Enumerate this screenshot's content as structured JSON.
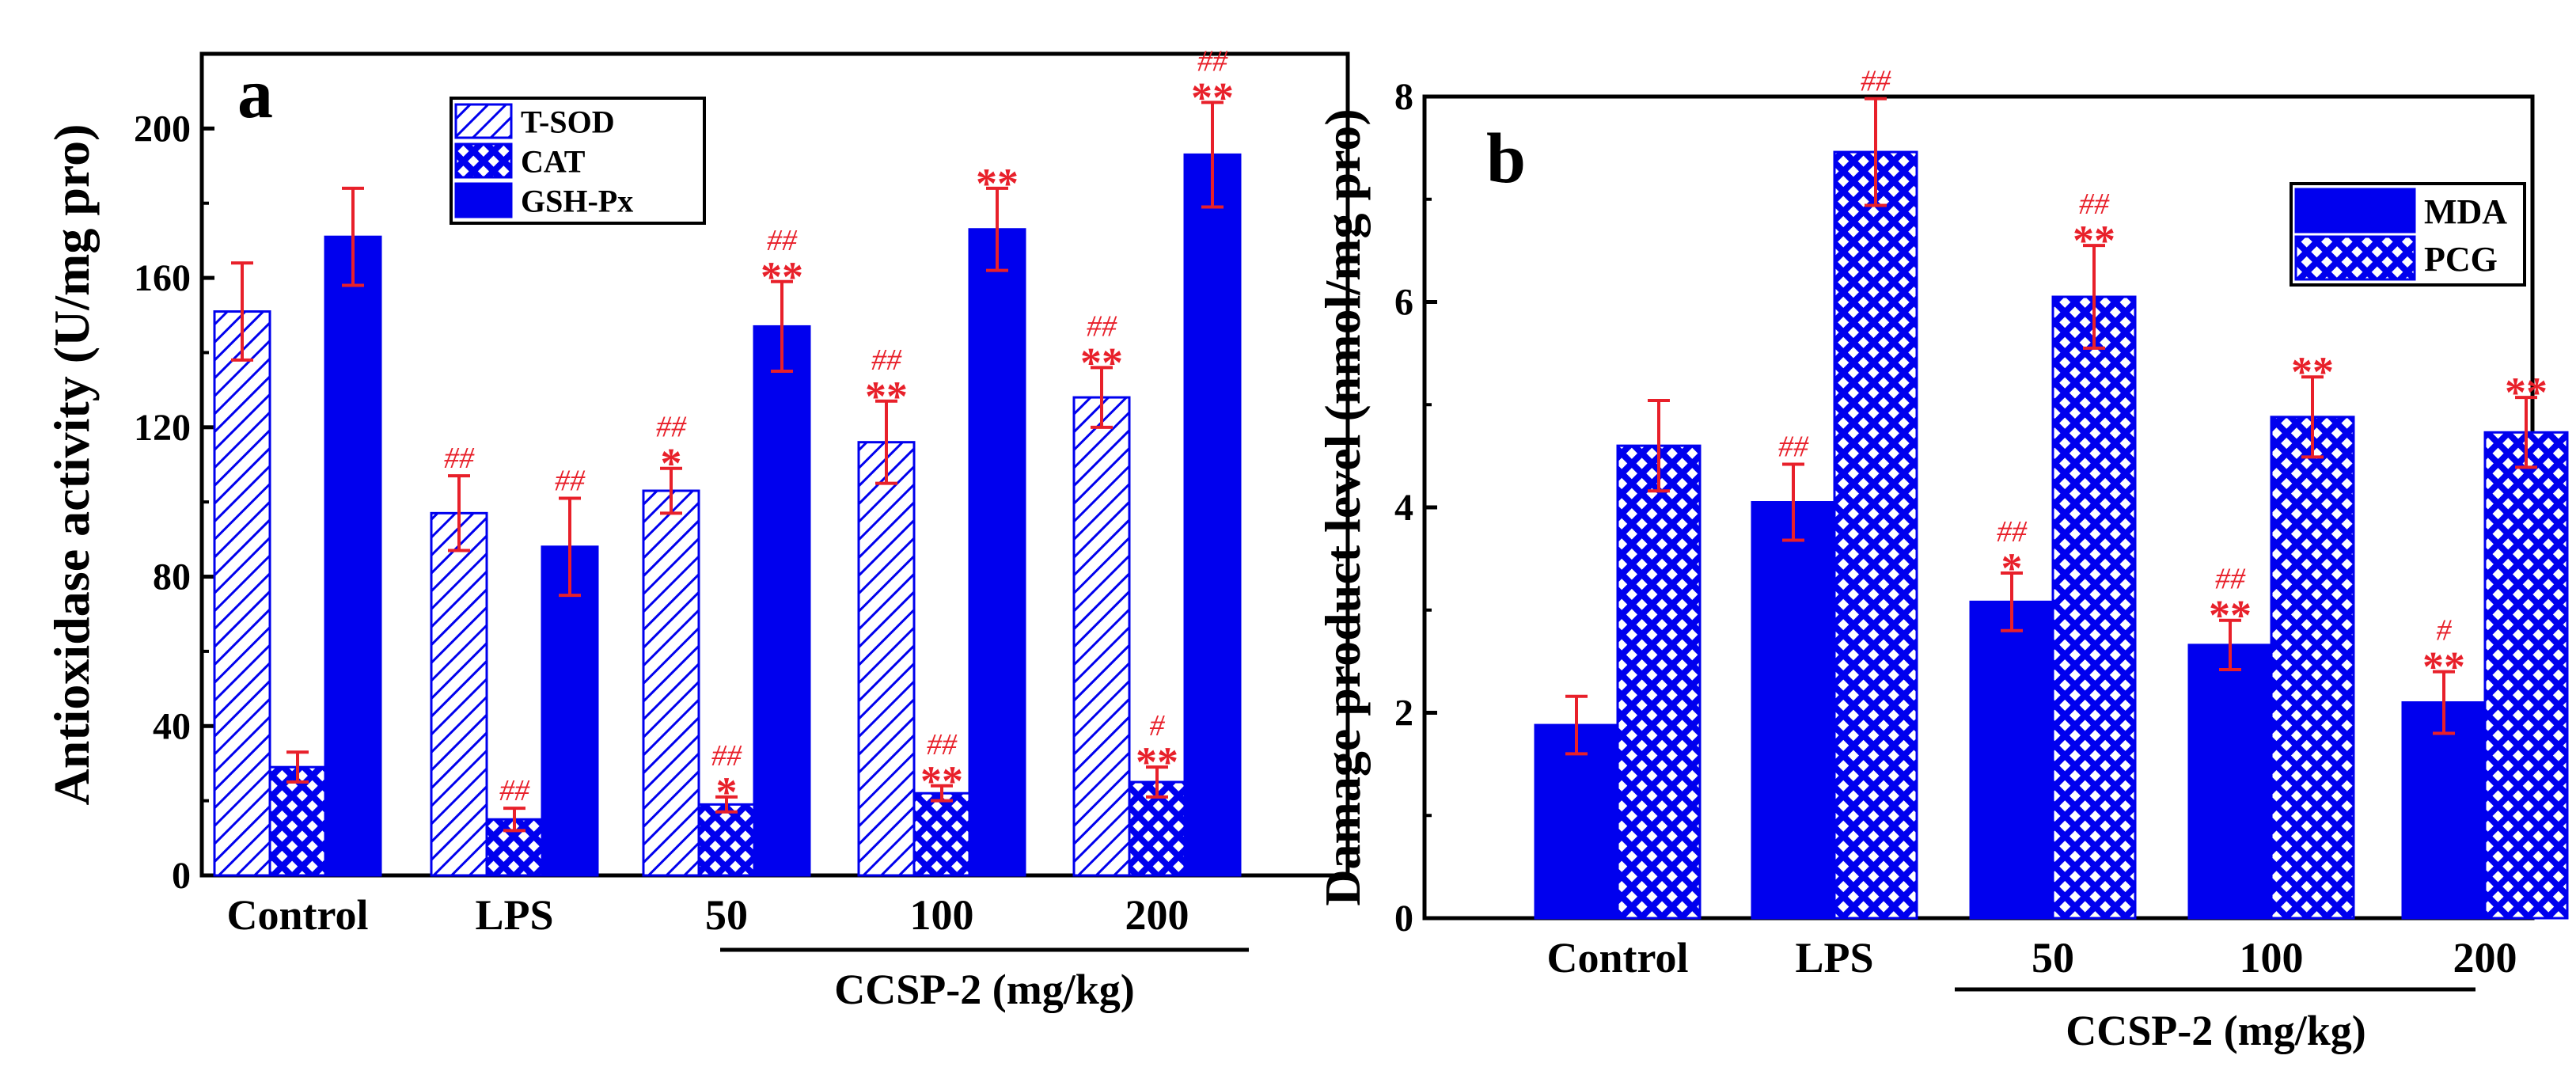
{
  "chart_data": [
    {
      "panel_label": "a",
      "type": "bar",
      "ylabel": "Antioxidase activity (U/mg pro)",
      "xlabel": "",
      "categories": [
        "Control",
        "LPS",
        "50",
        "100",
        "200"
      ],
      "group_label": "CCSP-2 (mg/kg)",
      "ylim": [
        0,
        220
      ],
      "yticks": [
        0,
        40,
        80,
        120,
        160,
        200
      ],
      "series": [
        {
          "name": "T-SOD",
          "pattern": "diagonal-hatch",
          "values": [
            151,
            97,
            103,
            116,
            128
          ],
          "errors": [
            13,
            10,
            6,
            11,
            8
          ],
          "marks": [
            [
              "",
              ""
            ],
            [
              "",
              "##"
            ],
            [
              "*",
              "##"
            ],
            [
              "**",
              "##"
            ],
            [
              "**",
              "##"
            ]
          ]
        },
        {
          "name": "CAT",
          "pattern": "cross-hatch",
          "values": [
            29,
            15,
            19,
            22,
            25
          ],
          "errors": [
            4,
            3,
            2,
            2,
            4
          ],
          "marks": [
            [
              "",
              ""
            ],
            [
              "",
              "##"
            ],
            [
              "*",
              "##"
            ],
            [
              "**",
              "##"
            ],
            [
              "**",
              "#"
            ]
          ]
        },
        {
          "name": "GSH-Px",
          "pattern": "solid",
          "values": [
            171,
            88,
            147,
            173,
            193
          ],
          "errors": [
            13,
            13,
            12,
            11,
            14
          ],
          "marks": [
            [
              "",
              ""
            ],
            [
              "",
              "##"
            ],
            [
              "**",
              "##"
            ],
            [
              "**",
              ""
            ],
            [
              "**",
              "##"
            ]
          ]
        }
      ]
    },
    {
      "panel_label": "b",
      "type": "bar",
      "ylabel": "Damage product level (nmol/mg pro)",
      "xlabel": "",
      "categories": [
        "Control",
        "LPS",
        "50",
        "100",
        "200"
      ],
      "group_label": "CCSP-2 (mg/kg)",
      "ylim": [
        0,
        8
      ],
      "yticks": [
        0,
        2,
        4,
        6,
        8
      ],
      "series": [
        {
          "name": "MDA",
          "pattern": "solid",
          "values": [
            1.88,
            4.05,
            3.08,
            2.66,
            2.1
          ],
          "errors": [
            0.28,
            0.37,
            0.28,
            0.24,
            0.3
          ],
          "marks": [
            [
              "",
              ""
            ],
            [
              "",
              "##"
            ],
            [
              "*",
              "##"
            ],
            [
              "**",
              "##"
            ],
            [
              "**",
              "#"
            ]
          ]
        },
        {
          "name": "PCG",
          "pattern": "cross-hatch",
          "values": [
            4.6,
            7.46,
            6.05,
            4.88,
            4.73
          ],
          "errors": [
            0.44,
            0.52,
            0.5,
            0.39,
            0.34
          ],
          "marks": [
            [
              "",
              ""
            ],
            [
              "",
              "##"
            ],
            [
              "**",
              "##"
            ],
            [
              "**",
              ""
            ],
            [
              "**",
              ""
            ]
          ]
        }
      ]
    }
  ],
  "colors": {
    "bar_blue": "#0000ee",
    "error_red": "#e8202a",
    "axis": "#000000"
  }
}
